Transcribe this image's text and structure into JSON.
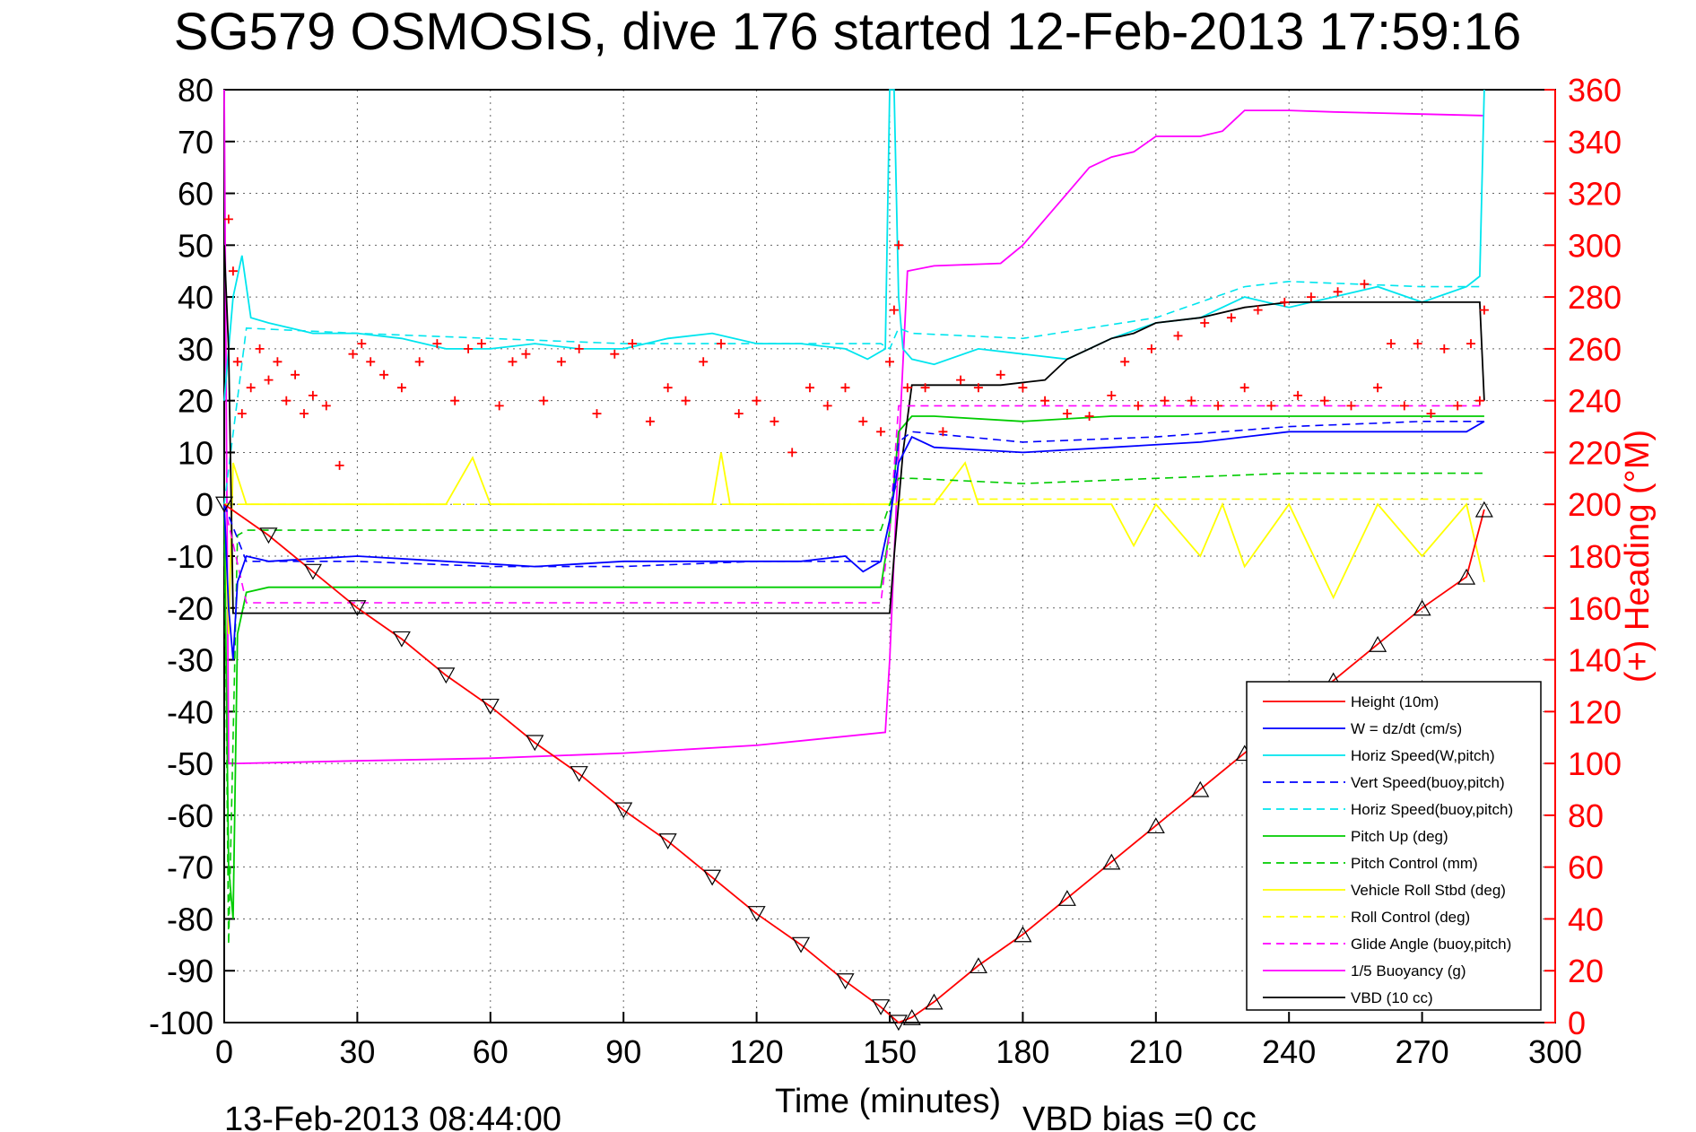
{
  "chart_data": {
    "type": "line",
    "title": "SG579 OSMOSIS, dive 176 started 12-Feb-2013 17:59:16",
    "xlabel": "Time (minutes)",
    "ylabel_right": "(+) Heading (°M)",
    "xlim": [
      0,
      300
    ],
    "ylim": [
      -100,
      80
    ],
    "ylim_right": [
      0,
      360
    ],
    "xticks": [
      "0",
      "30",
      "60",
      "90",
      "120",
      "150",
      "180",
      "210",
      "240",
      "270",
      "300"
    ],
    "yticks": [
      "80",
      "70",
      "60",
      "50",
      "40",
      "30",
      "20",
      "10",
      "0",
      "-10",
      "-20",
      "-30",
      "-40",
      "-50",
      "-60",
      "-70",
      "-80",
      "-90",
      "-100"
    ],
    "yticks_right": [
      "360",
      "340",
      "320",
      "300",
      "280",
      "260",
      "240",
      "220",
      "200",
      "180",
      "160",
      "140",
      "120",
      "100",
      "80",
      "60",
      "40",
      "20",
      "0"
    ],
    "grid": "dotted",
    "legend_position": "lower-right",
    "series": [
      {
        "name": "Height (10m)",
        "color": "#ff0000",
        "style": "solid",
        "markers": "triangle",
        "x": [
          0,
          10,
          20,
          30,
          40,
          50,
          60,
          70,
          80,
          90,
          100,
          110,
          120,
          130,
          140,
          148,
          152,
          155,
          160,
          170,
          180,
          190,
          200,
          210,
          220,
          230,
          240,
          250,
          260,
          270,
          280,
          284
        ],
        "y": [
          0,
          -6,
          -13,
          -20,
          -26,
          -33,
          -39,
          -46,
          -52,
          -59,
          -65,
          -72,
          -79,
          -85,
          -92,
          -97,
          -100,
          -99,
          -96,
          -89,
          -83,
          -76,
          -69,
          -62,
          -55,
          -48,
          -41,
          -34,
          -27,
          -20,
          -14,
          -1
        ]
      },
      {
        "name": "W = dz/dt (cm/s)",
        "color": "#0000ff",
        "style": "solid",
        "x": [
          0,
          1,
          2,
          3,
          5,
          10,
          30,
          50,
          70,
          90,
          110,
          130,
          140,
          144,
          148,
          150,
          152,
          155,
          160,
          180,
          200,
          220,
          240,
          260,
          280,
          284
        ],
        "y": [
          0,
          -20,
          -30,
          -15,
          -10,
          -11,
          -10,
          -11,
          -12,
          -11,
          -11,
          -11,
          -10,
          -13,
          -11,
          -3,
          8,
          13,
          11,
          10,
          11,
          12,
          14,
          14,
          14,
          16
        ]
      },
      {
        "name": "Horiz Speed(W,pitch)",
        "color": "#00e5ee",
        "style": "solid",
        "x": [
          0,
          2,
          4,
          6,
          10,
          20,
          30,
          40,
          50,
          60,
          70,
          80,
          90,
          100,
          110,
          120,
          130,
          140,
          145,
          149,
          150,
          151,
          152,
          153,
          155,
          160,
          170,
          180,
          190,
          200,
          210,
          220,
          230,
          240,
          250,
          260,
          270,
          280,
          283,
          284
        ],
        "y": [
          20,
          40,
          48,
          36,
          35,
          33,
          33,
          32,
          30,
          30,
          31,
          30,
          30,
          32,
          33,
          31,
          31,
          30,
          28,
          30,
          80,
          80,
          40,
          30,
          28,
          27,
          30,
          29,
          28,
          32,
          35,
          36,
          40,
          38,
          40,
          42,
          39,
          42,
          44,
          80
        ]
      },
      {
        "name": "Vert Speed(buoy,pitch)",
        "color": "#0000ff",
        "style": "dashed",
        "x": [
          0,
          5,
          30,
          60,
          90,
          120,
          148,
          150,
          152,
          155,
          180,
          210,
          240,
          270,
          284
        ],
        "y": [
          0,
          -11,
          -11,
          -12,
          -12,
          -11,
          -11,
          -3,
          12,
          14,
          12,
          13,
          15,
          16,
          16
        ]
      },
      {
        "name": "Horiz Speed(buoy,pitch)",
        "color": "#00e5ee",
        "style": "dashed",
        "x": [
          0,
          5,
          30,
          60,
          90,
          120,
          148,
          150,
          152,
          155,
          180,
          210,
          230,
          240,
          270,
          284
        ],
        "y": [
          0,
          34,
          33,
          32,
          31,
          31,
          31,
          30,
          34,
          33,
          32,
          36,
          42,
          43,
          42,
          42
        ]
      },
      {
        "name": "Pitch Up (deg)",
        "color": "#00cc00",
        "style": "solid",
        "x": [
          0,
          1,
          2,
          3,
          5,
          10,
          30,
          60,
          90,
          120,
          148,
          150,
          152,
          155,
          160,
          180,
          200,
          220,
          240,
          260,
          280,
          284
        ],
        "y": [
          0,
          -70,
          -80,
          -25,
          -17,
          -16,
          -16,
          -16,
          -16,
          -16,
          -16,
          -5,
          14,
          17,
          17,
          16,
          17,
          17,
          17,
          17,
          17,
          17
        ]
      },
      {
        "name": "Pitch Control (mm)",
        "color": "#00cc00",
        "style": "dashed",
        "x": [
          0,
          1,
          3,
          5,
          30,
          60,
          90,
          120,
          148,
          150,
          152,
          155,
          180,
          210,
          240,
          284
        ],
        "y": [
          0,
          -85,
          -6,
          -5,
          -5,
          -5,
          -5,
          -5,
          -5,
          0,
          5,
          5,
          4,
          5,
          6,
          6
        ]
      },
      {
        "name": "Vehicle Roll Stbd (deg)",
        "color": "#ffff00",
        "style": "solid",
        "x": [
          0,
          1,
          2,
          5,
          20,
          50,
          56,
          60,
          80,
          90,
          110,
          112,
          114,
          130,
          150,
          160,
          167,
          170,
          200,
          205,
          210,
          220,
          225,
          230,
          240,
          250,
          260,
          270,
          280,
          284
        ],
        "y": [
          0,
          -25,
          8,
          0,
          0,
          0,
          9,
          0,
          0,
          0,
          0,
          10,
          0,
          0,
          0,
          0,
          8,
          0,
          0,
          -8,
          0,
          -10,
          0,
          -12,
          0,
          -18,
          0,
          -10,
          0,
          -15
        ]
      },
      {
        "name": "Roll Control (deg)",
        "color": "#ffff00",
        "style": "dashed",
        "x": [
          0,
          5,
          150,
          151,
          153,
          200,
          284
        ],
        "y": [
          0,
          0,
          0,
          0,
          1,
          1,
          1
        ]
      },
      {
        "name": "Glide Angle (buoy,pitch)",
        "color": "#ff00ff",
        "style": "dashed",
        "x": [
          0,
          5,
          30,
          60,
          90,
          120,
          148,
          150,
          152,
          155,
          180,
          210,
          240,
          270,
          284
        ],
        "y": [
          0,
          -19,
          -19,
          -19,
          -19,
          -19,
          -19,
          -5,
          19,
          19,
          19,
          19,
          19,
          19,
          19
        ]
      },
      {
        "name": "1/5 Buoyancy (g)",
        "color": "#ff00ff",
        "style": "solid",
        "x": [
          0,
          1,
          3,
          30,
          60,
          90,
          120,
          149,
          150,
          152,
          154,
          160,
          175,
          180,
          185,
          190,
          195,
          200,
          205,
          210,
          220,
          225,
          230,
          240,
          250,
          260,
          270,
          284
        ],
        "y": [
          80,
          -50,
          -50,
          -49.5,
          -49,
          -48,
          -46.5,
          -44,
          -30,
          10,
          45,
          46,
          46.5,
          50,
          55,
          60,
          65,
          67,
          68,
          71,
          71,
          72,
          76,
          76,
          75.7,
          75.5,
          75.3,
          75
        ]
      },
      {
        "name": "VBD (10 cc)",
        "color": "#000000",
        "style": "solid",
        "x": [
          0,
          1,
          2,
          3,
          150,
          151,
          153,
          155,
          175,
          185,
          190,
          195,
          200,
          205,
          210,
          220,
          230,
          240,
          283,
          284
        ],
        "y": [
          50,
          30,
          -21,
          -21,
          -21,
          -10,
          10,
          23,
          23,
          24,
          28,
          30,
          32,
          33,
          35,
          36,
          38,
          39,
          39,
          20
        ]
      }
    ],
    "heading_series": {
      "name": "(+) Heading",
      "color": "#ff0000",
      "marker": "+",
      "axis": "right",
      "x": [
        1,
        2,
        3,
        4,
        6,
        8,
        10,
        12,
        14,
        16,
        18,
        20,
        23,
        26,
        29,
        31,
        33,
        36,
        40,
        44,
        48,
        52,
        55,
        58,
        62,
        65,
        68,
        72,
        76,
        80,
        84,
        88,
        92,
        96,
        100,
        104,
        108,
        112,
        116,
        120,
        124,
        128,
        132,
        136,
        140,
        144,
        148,
        150,
        151,
        152,
        154,
        158,
        162,
        166,
        170,
        175,
        180,
        185,
        190,
        195,
        200,
        203,
        206,
        209,
        212,
        215,
        218,
        221,
        224,
        227,
        230,
        233,
        236,
        239,
        242,
        245,
        248,
        251,
        254,
        257,
        260,
        263,
        266,
        269,
        272,
        275,
        278,
        281,
        283,
        284
      ],
      "y": [
        310,
        290,
        255,
        235,
        245,
        260,
        248,
        255,
        240,
        250,
        235,
        242,
        238,
        215,
        258,
        262,
        255,
        250,
        245,
        255,
        262,
        240,
        260,
        262,
        238,
        255,
        258,
        240,
        255,
        260,
        235,
        258,
        262,
        232,
        245,
        240,
        255,
        262,
        235,
        240,
        232,
        220,
        245,
        238,
        245,
        232,
        228,
        255,
        275,
        300,
        245,
        245,
        228,
        248,
        245,
        250,
        245,
        240,
        235,
        234,
        242,
        255,
        238,
        260,
        240,
        265,
        240,
        270,
        238,
        272,
        245,
        275,
        238,
        278,
        242,
        280,
        240,
        282,
        238,
        285,
        245,
        262,
        238,
        262,
        235,
        260,
        238,
        262,
        240,
        275
      ]
    }
  },
  "footer": {
    "date": "13-Feb-2013 08:44:00",
    "vbd_bias": "VBD bias =0 cc"
  }
}
